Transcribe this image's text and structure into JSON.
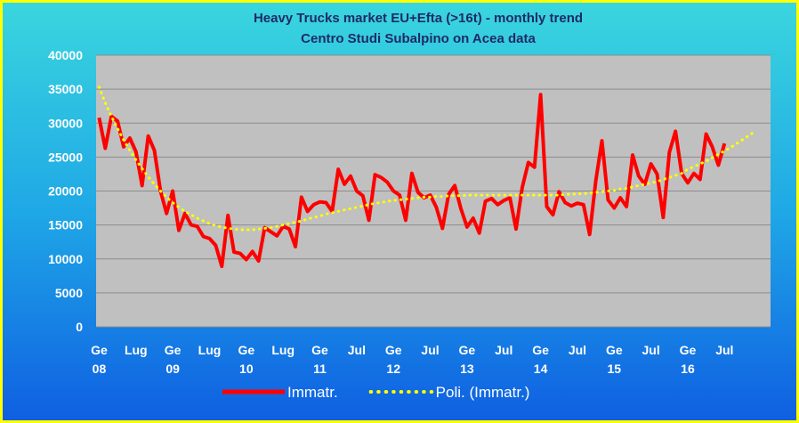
{
  "chart_data": {
    "type": "line",
    "title": "Heavy Trucks market EU+Efta (>16t) - monthly trend",
    "subtitle": "Centro Studi Subalpino on Acea data",
    "categories": [
      "Ge 08",
      null,
      null,
      null,
      null,
      null,
      "Lug",
      null,
      null,
      null,
      null,
      null,
      "Ge 09",
      null,
      null,
      null,
      null,
      null,
      "Lug",
      null,
      null,
      null,
      null,
      null,
      "Ge 10",
      null,
      null,
      null,
      null,
      null,
      "Lug",
      null,
      null,
      null,
      null,
      null,
      "Ge 11",
      null,
      null,
      null,
      null,
      null,
      "Jul",
      null,
      null,
      null,
      null,
      null,
      "Ge 12",
      null,
      null,
      null,
      null,
      null,
      "Jul",
      null,
      null,
      null,
      null,
      null,
      "Ge 13",
      null,
      null,
      null,
      null,
      null,
      "Jul",
      null,
      null,
      null,
      null,
      null,
      "Ge 14",
      null,
      null,
      null,
      null,
      null,
      "Jul",
      null,
      null,
      null,
      null,
      null,
      "Ge 15",
      null,
      null,
      null,
      null,
      null,
      "Jul",
      null,
      null,
      null,
      null,
      null,
      "Ge 16",
      null,
      null,
      null,
      null,
      null,
      "Jul",
      null,
      null,
      null,
      null,
      null,
      null,
      null
    ],
    "series": [
      {
        "name": "Immatr.",
        "color": "#ff0000",
        "style": "solid",
        "values": [
          30800,
          26300,
          31000,
          30300,
          26500,
          27800,
          25800,
          20800,
          28100,
          26000,
          20000,
          16700,
          20000,
          14200,
          16700,
          15000,
          14800,
          13300,
          13000,
          12000,
          8900,
          16400,
          11000,
          10800,
          9900,
          11100,
          9700,
          14600,
          14000,
          13400,
          14800,
          14400,
          11800,
          19100,
          17000,
          18000,
          18400,
          18300,
          17000,
          23200,
          21000,
          22200,
          20000,
          19300,
          15700,
          22400,
          22000,
          21300,
          20000,
          19400,
          15700,
          22600,
          19800,
          19000,
          19400,
          17600,
          14500,
          19500,
          20800,
          17400,
          14700,
          16000,
          13800,
          18500,
          18900,
          18000,
          18600,
          19000,
          14400,
          20500,
          24200,
          23500,
          34200,
          17700,
          16500,
          19900,
          18300,
          17800,
          18200,
          18000,
          13600,
          21500,
          27400,
          18700,
          17500,
          19000,
          17700,
          25300,
          22200,
          21000,
          24000,
          22500,
          16100,
          25700,
          28800,
          22600,
          21200,
          22600,
          21700,
          28400,
          26500,
          23800,
          27000,
          null,
          null,
          null,
          null,
          null,
          null,
          null
        ]
      },
      {
        "name": "Poli. (Immatr.)",
        "color": "#ffff00",
        "style": "dotted",
        "values": [
          35300,
          33000,
          31000,
          29200,
          27500,
          26000,
          24600,
          23300,
          22100,
          21000,
          20000,
          19100,
          18300,
          17600,
          17000,
          16500,
          16000,
          15600,
          15200,
          14900,
          14700,
          14500,
          14400,
          14300,
          14300,
          14300,
          14400,
          14500,
          14600,
          14800,
          15000,
          15200,
          15400,
          15600,
          15900,
          16100,
          16300,
          16600,
          16800,
          17000,
          17200,
          17400,
          17600,
          17800,
          18000,
          18200,
          18300,
          18500,
          18600,
          18700,
          18800,
          18900,
          19000,
          19100,
          19100,
          19200,
          19200,
          19300,
          19300,
          19300,
          19400,
          19400,
          19400,
          19400,
          19400,
          19400,
          19400,
          19400,
          19400,
          19400,
          19400,
          19400,
          19400,
          19400,
          19400,
          19400,
          19500,
          19500,
          19600,
          19600,
          19700,
          19800,
          19900,
          20000,
          20100,
          20300,
          20400,
          20600,
          20800,
          21000,
          21200,
          21400,
          21700,
          22000,
          22300,
          22600,
          23200,
          23600,
          24000,
          24400,
          24900,
          25400,
          25900,
          26400,
          27000,
          27600,
          28200,
          28800,
          null,
          null
        ]
      }
    ],
    "ylim": [
      0,
      40000
    ],
    "yticks": [
      0,
      5000,
      10000,
      15000,
      20000,
      25000,
      30000,
      35000,
      40000
    ],
    "grid": true,
    "legend": "bottom"
  }
}
